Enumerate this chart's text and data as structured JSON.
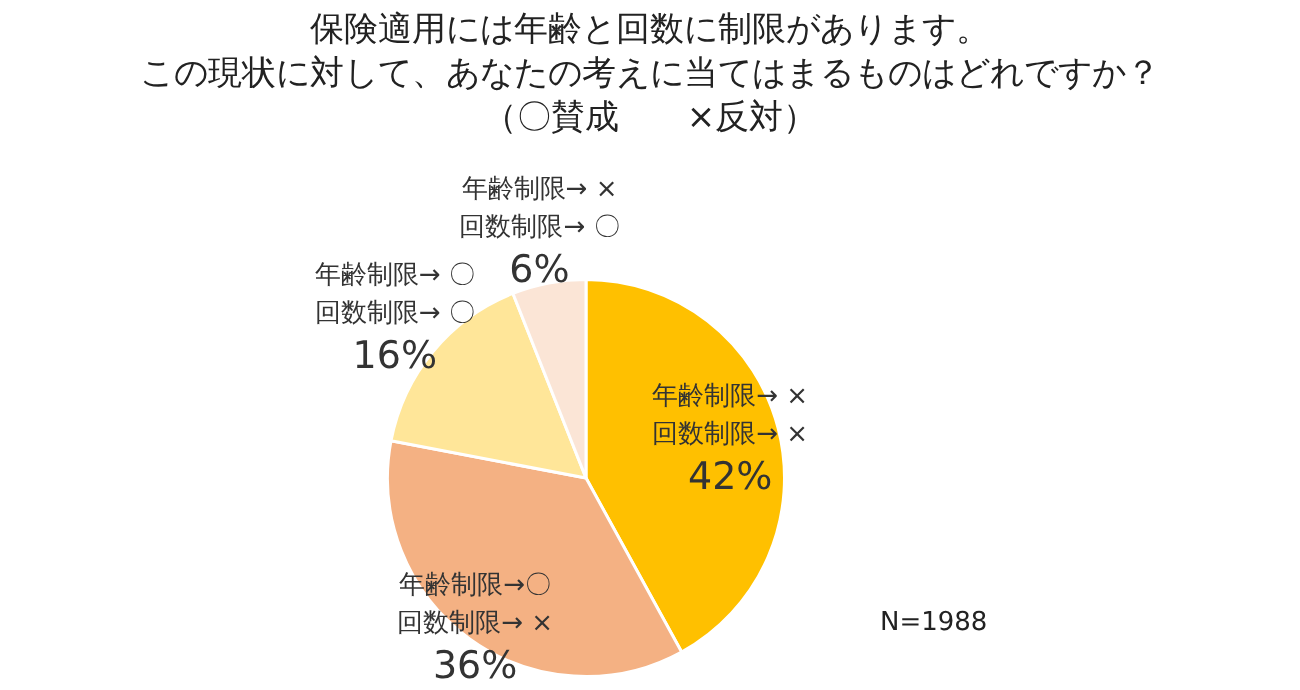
{
  "chart_data": {
    "type": "pie",
    "title": "保険適用には年齢と回数に制限があります。",
    "subtitle": "この現状に対して、あなたの考えに当てはまるものはどれですか？",
    "categories": [
      "年齢制限→ ×回数制限→ ×",
      "年齢制限→〇回数制限→ ×",
      "年齢制限→ 〇回数制限→ 〇",
      "年齢制限→ ×回数制限→ 〇"
    ],
    "values": [
      42,
      36,
      16,
      6
    ],
    "colors": [
      "#ffc000",
      "#f4b183",
      "#ffe699",
      "#fbe5d6"
    ],
    "value_labels": [
      "42%",
      "36%",
      "16%",
      "6%"
    ],
    "annotations": [
      "（〇賛成　　×反対）",
      "N=1988"
    ],
    "legend": false
  }
}
